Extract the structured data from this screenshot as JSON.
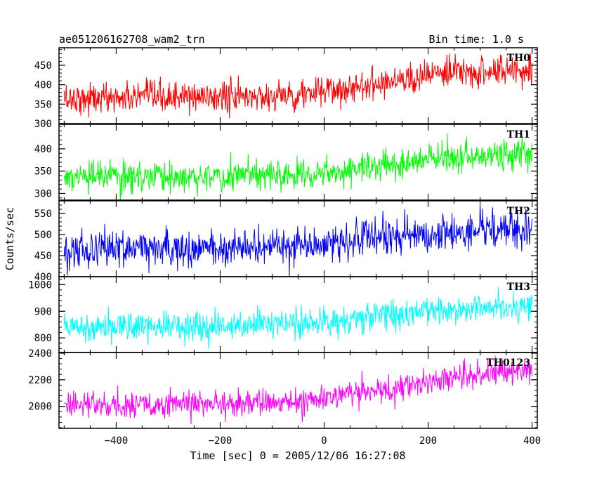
{
  "header": {
    "title": "ae051206162708_wam2_trn",
    "bin_time": "Bin time: 1.0 s"
  },
  "chart_data": {
    "type": "line",
    "xlabel": "Time [sec] 0 = 2005/12/06 16:27:08",
    "ylabel": "Counts/sec",
    "xlim": [
      -510,
      410
    ],
    "x_range": [
      -500,
      400
    ],
    "bin_time_s": 1.0,
    "x_ticks": [
      -400,
      -200,
      0,
      200,
      400
    ],
    "panels": [
      {
        "name": "TH0",
        "color": "#ff0000",
        "ylim": [
          300,
          495
        ],
        "y_ticks": [
          300,
          350,
          400,
          450
        ],
        "trend": [
          {
            "x": -500,
            "y": 365
          },
          {
            "x": -100,
            "y": 370
          },
          {
            "x": 0,
            "y": 380
          },
          {
            "x": 100,
            "y": 405
          },
          {
            "x": 200,
            "y": 425
          },
          {
            "x": 400,
            "y": 440
          }
        ],
        "noise_sd": 20
      },
      {
        "name": "TH1",
        "color": "#00ff00",
        "ylim": [
          285,
          455
        ],
        "y_ticks": [
          300,
          350,
          400
        ],
        "trend": [
          {
            "x": -500,
            "y": 335
          },
          {
            "x": -100,
            "y": 340
          },
          {
            "x": 0,
            "y": 350
          },
          {
            "x": 100,
            "y": 360
          },
          {
            "x": 200,
            "y": 375
          },
          {
            "x": 400,
            "y": 390
          }
        ],
        "noise_sd": 17
      },
      {
        "name": "TH2",
        "color": "#0000ff",
        "ylim": [
          400,
          580
        ],
        "y_ticks": [
          400,
          450,
          500,
          550
        ],
        "trend": [
          {
            "x": -500,
            "y": 465
          },
          {
            "x": -100,
            "y": 470
          },
          {
            "x": 0,
            "y": 480
          },
          {
            "x": 100,
            "y": 490
          },
          {
            "x": 200,
            "y": 500
          },
          {
            "x": 400,
            "y": 515
          }
        ],
        "noise_sd": 22
      },
      {
        "name": "TH3",
        "color": "#00ffff",
        "ylim": [
          745,
          1030
        ],
        "y_ticks": [
          800,
          900,
          1000
        ],
        "trend": [
          {
            "x": -500,
            "y": 845
          },
          {
            "x": -100,
            "y": 850
          },
          {
            "x": 0,
            "y": 860
          },
          {
            "x": 100,
            "y": 880
          },
          {
            "x": 200,
            "y": 900
          },
          {
            "x": 400,
            "y": 925
          }
        ],
        "noise_sd": 28
      },
      {
        "name": "TH0123",
        "color": "#ff00ff",
        "ylim": [
          1835,
          2405
        ],
        "y_ticks": [
          2000,
          2200,
          2400
        ],
        "trend": [
          {
            "x": -500,
            "y": 2010
          },
          {
            "x": -100,
            "y": 2020
          },
          {
            "x": 0,
            "y": 2060
          },
          {
            "x": 100,
            "y": 2120
          },
          {
            "x": 200,
            "y": 2190
          },
          {
            "x": 400,
            "y": 2290
          }
        ],
        "noise_sd": 50
      }
    ]
  }
}
